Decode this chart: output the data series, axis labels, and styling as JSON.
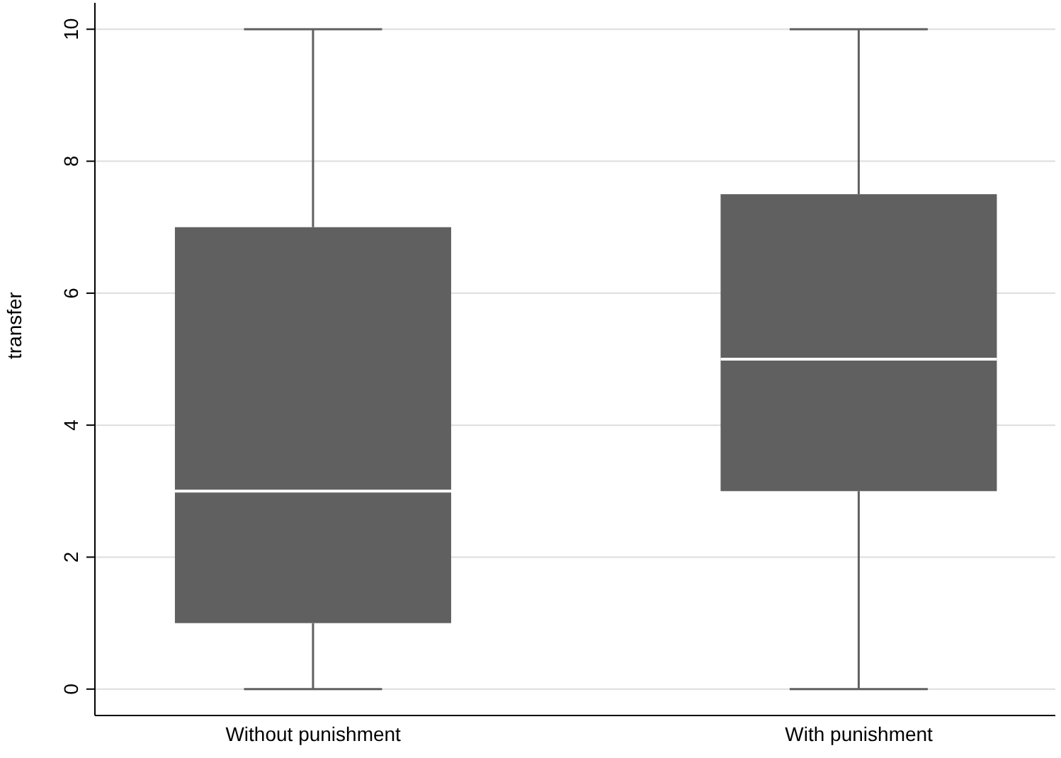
{
  "chart_data": {
    "type": "box",
    "ylabel": "transfer",
    "categories": [
      "Without punishment",
      "With punishment"
    ],
    "boxes": [
      {
        "low": 0,
        "q1": 1,
        "median": 3,
        "q3": 7,
        "high": 10
      },
      {
        "low": 0,
        "q1": 3,
        "median": 5,
        "q3": 7.5,
        "high": 10
      }
    ],
    "color": "#606060",
    "ylim": [
      -0.4,
      10.4
    ],
    "yticks": [
      0,
      2,
      4,
      6,
      8,
      10
    ],
    "grid": "y"
  }
}
